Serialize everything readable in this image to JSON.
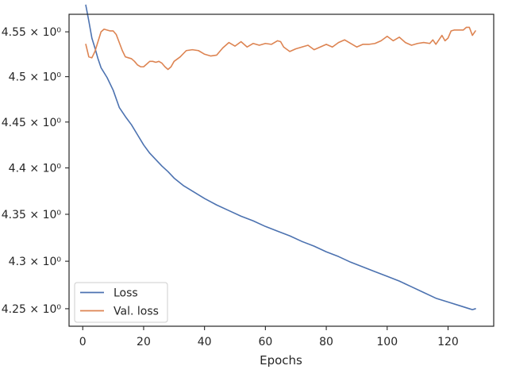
{
  "chart_data": {
    "type": "line",
    "title": "",
    "xlabel": "Epochs",
    "ylabel": "",
    "xlim": [
      -4.5,
      135
    ],
    "ylim": [
      4.2317,
      4.5697
    ],
    "yscale": "log",
    "grid": false,
    "legend_position": "lower-left",
    "x_ticks": [
      {
        "value": 0,
        "label": "0"
      },
      {
        "value": 20,
        "label": "20"
      },
      {
        "value": 40,
        "label": "40"
      },
      {
        "value": 60,
        "label": "60"
      },
      {
        "value": 80,
        "label": "80"
      },
      {
        "value": 100,
        "label": "100"
      },
      {
        "value": 120,
        "label": "120"
      }
    ],
    "y_ticks": [
      {
        "value": 4.25,
        "label": "4.25 × 10⁰"
      },
      {
        "value": 4.3,
        "label": "4.3 × 10⁰"
      },
      {
        "value": 4.35,
        "label": "4.35 × 10⁰"
      },
      {
        "value": 4.4,
        "label": "4.4 × 10⁰"
      },
      {
        "value": 4.45,
        "label": "4.45 × 10⁰"
      },
      {
        "value": 4.5,
        "label": "4.5 × 10⁰"
      },
      {
        "value": 4.55,
        "label": "4.55 × 10⁰"
      }
    ],
    "series": [
      {
        "name": "Loss",
        "color": "#4c72b0",
        "x": [
          1,
          2,
          3,
          4,
          5,
          6,
          8,
          10,
          12,
          14,
          16,
          18,
          20,
          22,
          24,
          26,
          28,
          30,
          33,
          36,
          40,
          44,
          48,
          52,
          56,
          60,
          64,
          68,
          72,
          76,
          80,
          84,
          88,
          92,
          96,
          100,
          104,
          108,
          112,
          116,
          120,
          124,
          127,
          128,
          129
        ],
        "y": [
          4.58,
          4.562,
          4.543,
          4.532,
          4.52,
          4.51,
          4.499,
          4.485,
          4.466,
          4.456,
          4.447,
          4.436,
          4.425,
          4.416,
          4.409,
          4.402,
          4.396,
          4.389,
          4.381,
          4.375,
          4.367,
          4.36,
          4.354,
          4.348,
          4.343,
          4.337,
          4.332,
          4.327,
          4.321,
          4.316,
          4.31,
          4.305,
          4.299,
          4.294,
          4.289,
          4.284,
          4.279,
          4.273,
          4.267,
          4.261,
          4.257,
          4.253,
          4.25,
          4.249,
          4.25
        ]
      },
      {
        "name": "Val. loss",
        "color": "#dd8452",
        "x": [
          1,
          2,
          3,
          4,
          5,
          6,
          7,
          8,
          9,
          10,
          11,
          12,
          13,
          14,
          15,
          16,
          17,
          18,
          19,
          20,
          21,
          22,
          23,
          24,
          25,
          26,
          27,
          28,
          29,
          30,
          32,
          34,
          36,
          38,
          40,
          42,
          44,
          46,
          48,
          50,
          52,
          54,
          56,
          58,
          60,
          62,
          64,
          65,
          66,
          68,
          70,
          72,
          74,
          76,
          78,
          80,
          82,
          84,
          86,
          88,
          90,
          92,
          94,
          96,
          98,
          100,
          102,
          104,
          106,
          108,
          110,
          112,
          114,
          115,
          116,
          117,
          118,
          119,
          120,
          121,
          122,
          123,
          124,
          125,
          126,
          127,
          128,
          129
        ],
        "y": [
          4.536,
          4.522,
          4.521,
          4.528,
          4.539,
          4.55,
          4.553,
          4.552,
          4.551,
          4.551,
          4.547,
          4.538,
          4.529,
          4.522,
          4.521,
          4.52,
          4.517,
          4.513,
          4.511,
          4.511,
          4.514,
          4.517,
          4.517,
          4.516,
          4.517,
          4.515,
          4.511,
          4.508,
          4.511,
          4.517,
          4.522,
          4.529,
          4.53,
          4.529,
          4.525,
          4.523,
          4.524,
          4.532,
          4.538,
          4.534,
          4.539,
          4.533,
          4.537,
          4.535,
          4.537,
          4.536,
          4.54,
          4.539,
          4.533,
          4.528,
          4.531,
          4.533,
          4.535,
          4.53,
          4.533,
          4.536,
          4.533,
          4.538,
          4.541,
          4.537,
          4.533,
          4.536,
          4.536,
          4.537,
          4.54,
          4.545,
          4.54,
          4.544,
          4.538,
          4.535,
          4.537,
          4.538,
          4.537,
          4.541,
          4.536,
          4.541,
          4.546,
          4.54,
          4.543,
          4.551,
          4.552,
          4.552,
          4.552,
          4.552,
          4.555,
          4.555,
          4.546,
          4.551
        ]
      }
    ]
  }
}
